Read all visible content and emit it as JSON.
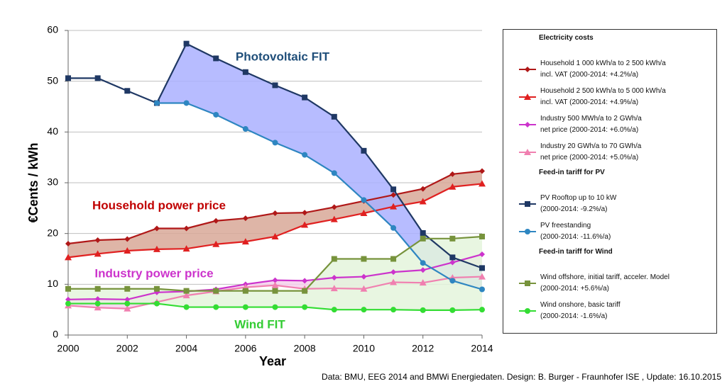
{
  "chart_data": {
    "type": "line",
    "x_label": "Year",
    "y_label": "€Cents / kWh",
    "x": [
      2000,
      2001,
      2002,
      2003,
      2004,
      2005,
      2006,
      2007,
      2008,
      2009,
      2010,
      2011,
      2012,
      2013,
      2014
    ],
    "xlim": [
      2000,
      2014
    ],
    "xticks": [
      2000,
      2002,
      2004,
      2006,
      2008,
      2010,
      2012,
      2014
    ],
    "ylim": [
      0,
      60
    ],
    "yticks": [
      0,
      10,
      20,
      30,
      40,
      50,
      60
    ],
    "grid": true,
    "legend_position": "right",
    "legend_sections": [
      "Electricity costs",
      "Feed-in tariff for PV",
      "Feed-in tariff for Wind"
    ],
    "series": [
      {
        "name": "Household 1 000 kWh/a to 2 500 kWh/a\nincl. VAT (2000-2014: +4.2%/a)",
        "section": 0,
        "color": "#b01818",
        "marker": "diamond",
        "values": [
          18.0,
          18.7,
          18.9,
          21.0,
          21.0,
          22.5,
          23.0,
          24.0,
          24.1,
          25.2,
          26.4,
          27.6,
          28.8,
          31.7,
          32.3
        ]
      },
      {
        "name": "Household 2 500 kWh/a to 5 000 kWh/a\nincl. VAT (2000-2014: +4.9%/a)",
        "section": 0,
        "color": "#e02020",
        "marker": "triangle",
        "values": [
          15.3,
          16.0,
          16.6,
          16.9,
          17.0,
          17.9,
          18.4,
          19.4,
          21.7,
          22.8,
          24.0,
          25.3,
          26.3,
          29.2,
          29.8
        ]
      },
      {
        "name": "Industry 500 MWh/a to 2 GWh/a\nnet price (2000-2014: +6.0%/a)",
        "section": 0,
        "color": "#cc33cc",
        "marker": "diamond",
        "values": [
          7.0,
          7.1,
          7.0,
          8.4,
          8.6,
          9.0,
          10.0,
          10.8,
          10.7,
          11.3,
          11.5,
          12.4,
          12.8,
          14.3,
          15.9
        ]
      },
      {
        "name": "Industry 20 GWh/a to 70 GWh/a\nnet price (2000-2014: +5.0%/a)",
        "section": 0,
        "color": "#f080b0",
        "marker": "triangle",
        "values": [
          5.8,
          5.4,
          5.2,
          6.5,
          7.8,
          8.6,
          9.4,
          9.8,
          9.1,
          9.2,
          9.1,
          10.4,
          10.3,
          11.3,
          11.5
        ]
      },
      {
        "name": "PV Rooftop up to 10 kW\n(2000-2014: -9.2%/a)",
        "section": 1,
        "color": "#1f3864",
        "marker": "square",
        "values": [
          50.6,
          50.6,
          48.1,
          45.7,
          57.4,
          54.5,
          51.8,
          49.2,
          46.8,
          43.0,
          36.3,
          28.7,
          20.1,
          15.3,
          13.2
        ]
      },
      {
        "name": "PV freestanding\n(2000-2014: -11.6%/a)",
        "section": 1,
        "color": "#2e86c1",
        "marker": "circle",
        "values": [
          null,
          null,
          null,
          45.7,
          45.7,
          43.4,
          40.6,
          37.9,
          35.5,
          31.9,
          26.6,
          21.1,
          14.2,
          10.7,
          9.0
        ]
      },
      {
        "name": "Wind offshore, initial tariff, acceler. Model\n(2000-2014: +5.6%/a)",
        "section": 2,
        "color": "#77933c",
        "marker": "square",
        "values": [
          9.1,
          9.1,
          9.1,
          9.1,
          8.7,
          8.7,
          8.7,
          8.7,
          8.7,
          15.0,
          15.0,
          15.0,
          19.0,
          19.0,
          19.4
        ]
      },
      {
        "name": "Wind onshore, basic tariff\n(2000-2014: -1.6%/a)",
        "section": 2,
        "color": "#33dd33",
        "marker": "circle",
        "values": [
          6.2,
          6.2,
          6.2,
          6.2,
          5.5,
          5.5,
          5.5,
          5.5,
          5.5,
          5.0,
          5.0,
          5.0,
          4.9,
          4.9,
          5.0
        ]
      }
    ],
    "fills": [
      {
        "from": 0,
        "to": 1,
        "color": "#d8a898"
      },
      {
        "from": 2,
        "to": 3,
        "color": "#f6d0ec"
      },
      {
        "from": 4,
        "to": 5,
        "color": "#aab0ff"
      },
      {
        "from": 6,
        "to": 7,
        "color": "#e4f4dc"
      }
    ],
    "annotations": [
      {
        "text": "Photovoltaic FIT",
        "color": "#1f4e79"
      },
      {
        "text": "Household power price",
        "color": "#c00000"
      },
      {
        "text": "Industry power price",
        "color": "#cc33cc"
      },
      {
        "text": "Wind FIT",
        "color": "#33cc33"
      }
    ],
    "source": "Data: BMU, EEG 2014 and BMWi Energiedaten. Design: B. Burger - Fraunhofer ISE , Update: 16.10.2015"
  }
}
